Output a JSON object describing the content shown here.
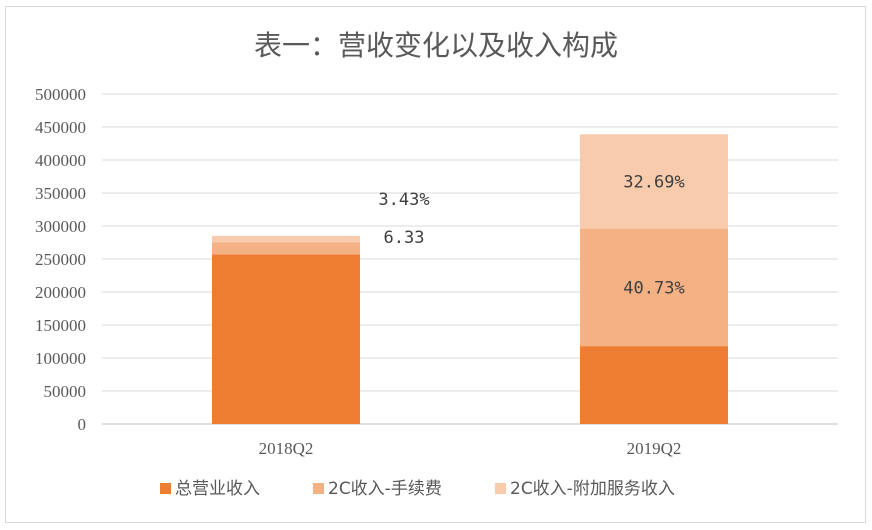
{
  "chart_data": {
    "type": "bar",
    "stacked": true,
    "title": "表一：营收变化以及收入构成",
    "categories": [
      "2018Q2",
      "2019Q2"
    ],
    "ylim": [
      0,
      500000
    ],
    "yticks": [
      "0",
      "50000",
      "100000",
      "150000",
      "200000",
      "250000",
      "300000",
      "350000",
      "400000",
      "450000",
      "500000"
    ],
    "grid": true,
    "legend_position": "bottom",
    "series": [
      {
        "name": "总营业收入",
        "color": "#ED7D31",
        "values": [
          257000,
          118000
        ]
      },
      {
        "name": "2C收入-手续费",
        "color": "#F4B183",
        "values": [
          18000,
          178000
        ]
      },
      {
        "name": "2C收入-附加服务收入",
        "color": "#F8CBAD",
        "values": [
          10000,
          143000
        ]
      }
    ],
    "annotations": [
      {
        "text": "3.43%",
        "category": "2018Q2",
        "series": "2C收入-附加服务收入"
      },
      {
        "text": "6.33",
        "category": "2018Q2",
        "series": "2C收入-手续费"
      },
      {
        "text": "32.69%",
        "category": "2019Q2",
        "series": "2C收入-附加服务收入"
      },
      {
        "text": "40.73%",
        "category": "2019Q2",
        "series": "2C收入-手续费"
      }
    ]
  }
}
